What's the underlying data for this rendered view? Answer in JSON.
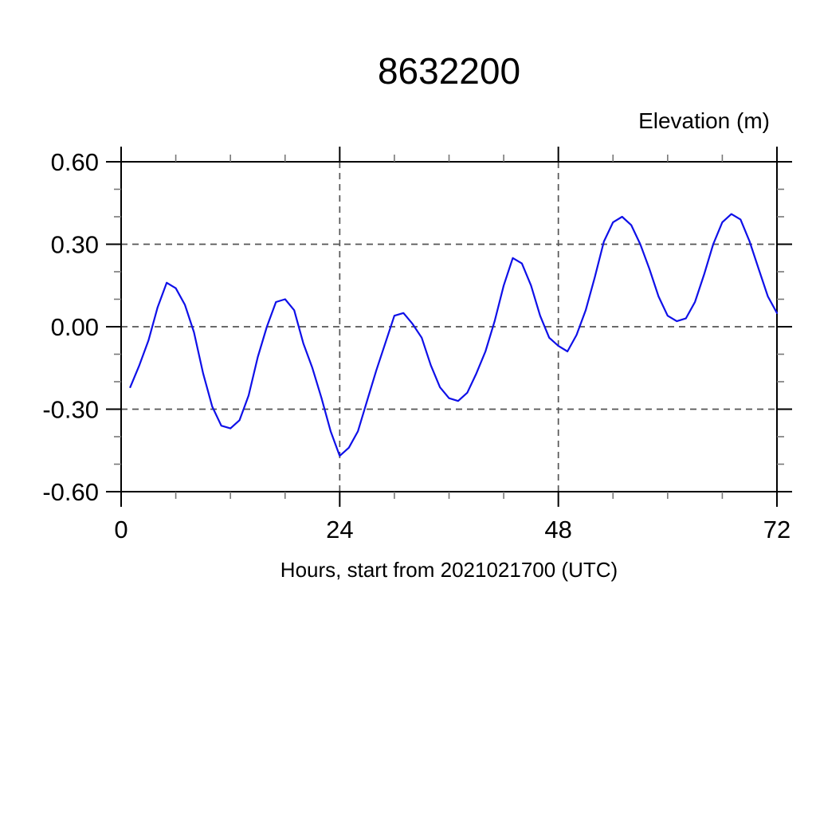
{
  "chart_data": {
    "type": "line",
    "title": "8632200",
    "ylabel": "Elevation (m)",
    "xlabel": "Hours, start from 2021021700 (UTC)",
    "xlim": [
      0,
      72
    ],
    "ylim": [
      -0.6,
      0.6
    ],
    "grid": {
      "style": "dashed",
      "x_lines": [
        24,
        48
      ],
      "y_lines": [
        0.3,
        0.0,
        -0.3
      ]
    },
    "xticks": {
      "major": [
        0,
        24,
        48,
        72
      ],
      "labels": [
        "0",
        "24",
        "48",
        "72"
      ],
      "minor_step": 6
    },
    "yticks": {
      "major": [
        0.6,
        0.3,
        0.0,
        -0.3,
        -0.6
      ],
      "labels": [
        "0.60",
        "0.30",
        "0.00",
        "-0.30",
        "-0.60"
      ],
      "minor_step": 0.1
    },
    "legend": "none",
    "line_color": "#0f10e8",
    "series": [
      {
        "name": "elevation",
        "x": [
          1,
          2,
          3,
          4,
          5,
          6,
          7,
          8,
          9,
          10,
          11,
          12,
          13,
          14,
          15,
          16,
          17,
          18,
          19,
          20,
          21,
          22,
          23,
          24,
          25,
          26,
          27,
          28,
          29,
          30,
          31,
          32,
          33,
          34,
          35,
          36,
          37,
          38,
          39,
          40,
          41,
          42,
          43,
          44,
          45,
          46,
          47,
          48,
          49,
          50,
          51,
          52,
          53,
          54,
          55,
          56,
          57,
          58,
          59,
          60,
          61,
          62,
          63,
          64,
          65,
          66,
          67,
          68,
          69,
          70,
          71,
          72
        ],
        "y": [
          -0.22,
          -0.14,
          -0.05,
          0.07,
          0.16,
          0.14,
          0.08,
          -0.02,
          -0.17,
          -0.29,
          -0.36,
          -0.37,
          -0.34,
          -0.25,
          -0.11,
          0.0,
          0.09,
          0.1,
          0.06,
          -0.06,
          -0.15,
          -0.26,
          -0.38,
          -0.47,
          -0.44,
          -0.38,
          -0.27,
          -0.16,
          -0.06,
          0.04,
          0.05,
          0.01,
          -0.04,
          -0.14,
          -0.22,
          -0.26,
          -0.27,
          -0.24,
          -0.17,
          -0.09,
          0.02,
          0.15,
          0.25,
          0.23,
          0.15,
          0.04,
          -0.04,
          -0.07,
          -0.09,
          -0.03,
          0.06,
          0.18,
          0.31,
          0.38,
          0.4,
          0.37,
          0.3,
          0.21,
          0.11,
          0.04,
          0.02,
          0.03,
          0.09,
          0.19,
          0.3,
          0.38,
          0.41,
          0.39,
          0.31,
          0.21,
          0.11,
          0.05
        ]
      }
    ],
    "colors": {
      "frame": "#000000",
      "major_tick": "#000000",
      "minor_tick": "#777777",
      "grid_line": "#555555",
      "text": "#000000"
    }
  }
}
